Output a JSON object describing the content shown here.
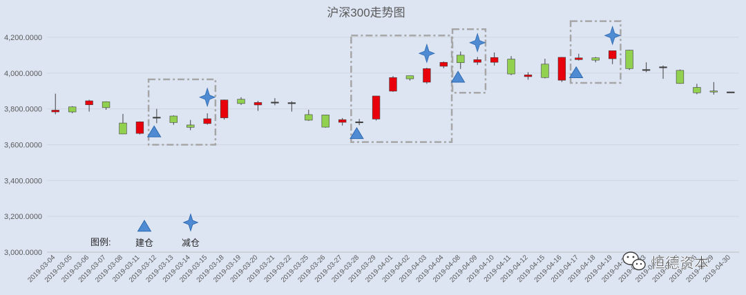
{
  "chart_data": {
    "type": "candlestick",
    "title": "沪深300走势图",
    "ylim": [
      3000,
      4300
    ],
    "yticks": [
      3000,
      3200,
      3400,
      3600,
      3800,
      4000,
      4200
    ],
    "ytick_labels": [
      "3,000.0000",
      "3,200.0000",
      "3,400.0000",
      "3,600.0000",
      "3,800.0000",
      "4,000.0000",
      "4,200.0000"
    ],
    "grid": true,
    "colors": {
      "up": "#e8000b",
      "down": "#92d050",
      "marker": "#4f8bd2",
      "doji": "#404040",
      "box": "#a6a6a6"
    },
    "categories": [
      "2019-03-04",
      "2019-03-05",
      "2019-03-06",
      "2019-03-07",
      "2019-03-08",
      "2019-03-11",
      "2019-03-12",
      "2019-03-13",
      "2019-03-14",
      "2019-03-15",
      "2019-03-18",
      "2019-03-19",
      "2019-03-20",
      "2019-03-21",
      "2019-03-22",
      "2019-03-25",
      "2019-03-26",
      "2019-03-27",
      "2019-03-28",
      "2019-03-29",
      "2019-04-01",
      "2019-04-02",
      "2019-04-03",
      "2019-04-04",
      "2019-04-08",
      "2019-04-09",
      "2019-04-10",
      "2019-04-11",
      "2019-04-12",
      "2019-04-15",
      "2019-04-16",
      "2019-04-17",
      "2019-04-18",
      "2019-04-19",
      "2019-04-22",
      "2019-04-23",
      "2019-04-24",
      "2019-04-25",
      "2019-04-26",
      "2019-04-29",
      "2019-04-30"
    ],
    "ohlc": [
      {
        "o": 3783,
        "h": 3885,
        "l": 3770,
        "c": 3793
      },
      {
        "o": 3811,
        "h": 3815,
        "l": 3776,
        "c": 3783
      },
      {
        "o": 3823,
        "h": 3851,
        "l": 3785,
        "c": 3845
      },
      {
        "o": 3840,
        "h": 3842,
        "l": 3795,
        "c": 3807
      },
      {
        "o": 3721,
        "h": 3772,
        "l": 3659,
        "c": 3660
      },
      {
        "o": 3663,
        "h": 3730,
        "l": 3657,
        "c": 3728
      },
      {
        "o": 3751,
        "h": 3800,
        "l": 3720,
        "c": 3754
      },
      {
        "o": 3760,
        "h": 3764,
        "l": 3711,
        "c": 3724
      },
      {
        "o": 3710,
        "h": 3738,
        "l": 3681,
        "c": 3697
      },
      {
        "o": 3718,
        "h": 3775,
        "l": 3712,
        "c": 3745
      },
      {
        "o": 3750,
        "h": 3852,
        "l": 3740,
        "c": 3850
      },
      {
        "o": 3854,
        "h": 3865,
        "l": 3822,
        "c": 3830
      },
      {
        "o": 3822,
        "h": 3845,
        "l": 3789,
        "c": 3836
      },
      {
        "o": 3835,
        "h": 3860,
        "l": 3820,
        "c": 3838
      },
      {
        "o": 3835,
        "h": 3843,
        "l": 3785,
        "c": 3832
      },
      {
        "o": 3768,
        "h": 3795,
        "l": 3733,
        "c": 3737
      },
      {
        "o": 3766,
        "h": 3767,
        "l": 3695,
        "c": 3698
      },
      {
        "o": 3725,
        "h": 3749,
        "l": 3707,
        "c": 3740
      },
      {
        "o": 3728,
        "h": 3744,
        "l": 3709,
        "c": 3726
      },
      {
        "o": 3743,
        "h": 3873,
        "l": 3735,
        "c": 3872
      },
      {
        "o": 3899,
        "h": 3983,
        "l": 3895,
        "c": 3975
      },
      {
        "o": 3985,
        "h": 3986,
        "l": 3958,
        "c": 3968
      },
      {
        "o": 3949,
        "h": 4030,
        "l": 3940,
        "c": 4025
      },
      {
        "o": 4038,
        "h": 4065,
        "l": 4027,
        "c": 4060
      },
      {
        "o": 4100,
        "h": 4120,
        "l": 4023,
        "c": 4058
      },
      {
        "o": 4060,
        "h": 4090,
        "l": 4045,
        "c": 4075
      },
      {
        "o": 4060,
        "h": 4115,
        "l": 4042,
        "c": 4087
      },
      {
        "o": 4078,
        "h": 4095,
        "l": 3988,
        "c": 3995
      },
      {
        "o": 3980,
        "h": 4005,
        "l": 3963,
        "c": 3990
      },
      {
        "o": 4050,
        "h": 4080,
        "l": 3970,
        "c": 3975
      },
      {
        "o": 3960,
        "h": 4090,
        "l": 3950,
        "c": 4088
      },
      {
        "o": 4075,
        "h": 4108,
        "l": 4070,
        "c": 4085
      },
      {
        "o": 4085,
        "h": 4090,
        "l": 4060,
        "c": 4072
      },
      {
        "o": 4080,
        "h": 4122,
        "l": 4050,
        "c": 4125
      },
      {
        "o": 4128,
        "h": 4130,
        "l": 4017,
        "c": 4025
      },
      {
        "o": 4020,
        "h": 4060,
        "l": 4005,
        "c": 4018
      },
      {
        "o": 4035,
        "h": 4042,
        "l": 3968,
        "c": 4032
      },
      {
        "o": 4015,
        "h": 4020,
        "l": 3940,
        "c": 3942
      },
      {
        "o": 3920,
        "h": 3940,
        "l": 3882,
        "c": 3890
      },
      {
        "o": 3900,
        "h": 3950,
        "l": 3880,
        "c": 3896
      },
      {
        "o": 3895,
        "h": 3895,
        "l": 3895,
        "c": 3895
      }
    ],
    "build_markers": [
      {
        "date": "2019-03-12",
        "y": 3670
      },
      {
        "date": "2019-03-28",
        "y": 3660
      },
      {
        "date": "2019-04-08",
        "y": 3975
      },
      {
        "date": "2019-04-17",
        "y": 4000
      }
    ],
    "reduce_markers": [
      {
        "date": "2019-03-15",
        "y": 3865
      },
      {
        "date": "2019-04-03",
        "y": 4110
      },
      {
        "date": "2019-04-09",
        "y": 4170
      },
      {
        "date": "2019-04-19",
        "y": 4210
      }
    ],
    "highlight_boxes": [
      {
        "from": "2019-03-12",
        "to": "2019-03-15",
        "ymin": 3600,
        "ymax": 3965
      },
      {
        "from": "2019-03-28",
        "to": "2019-04-04",
        "ymin": 3615,
        "ymax": 4210
      },
      {
        "from": "2019-04-08",
        "to": "2019-04-09",
        "ymin": 3890,
        "ymax": 4245
      },
      {
        "from": "2019-04-17",
        "to": "2019-04-19",
        "ymin": 3945,
        "ymax": 4290
      }
    ],
    "legend": {
      "title": "图例:",
      "build_label": "建仓",
      "reduce_label": "减仓",
      "placement": "bottom-left"
    },
    "watermark": "恒德资本"
  }
}
